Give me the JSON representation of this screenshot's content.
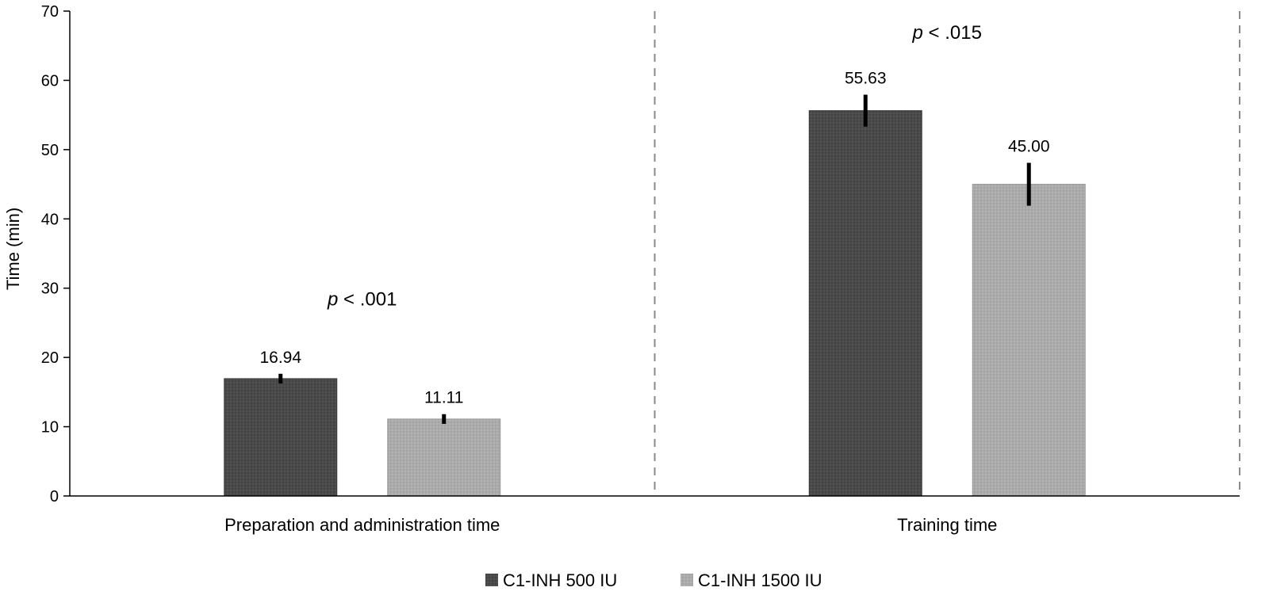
{
  "chart_data": {
    "type": "bar",
    "title": "",
    "xlabel": "",
    "ylabel": "Time (min)",
    "ylim": [
      0,
      70
    ],
    "yticks": [
      0,
      10,
      20,
      30,
      40,
      50,
      60,
      70
    ],
    "grid": false,
    "legend_position": "bottom",
    "categories": [
      "Preparation and administration time",
      "Training time"
    ],
    "series": [
      {
        "name": "C1-INH 500 IU",
        "color": "#4a4a4a",
        "values": [
          16.94,
          55.63
        ],
        "value_labels": [
          "16.94",
          "55.63"
        ],
        "error": [
          0.7,
          2.3
        ]
      },
      {
        "name": "C1-INH 1500 IU",
        "color": "#ababab",
        "values": [
          11.11,
          45.0
        ],
        "value_labels": [
          "11.11",
          "45.00"
        ],
        "error": [
          0.7,
          3.1
        ]
      }
    ],
    "annotations": [
      {
        "category_index": 0,
        "p_symbol": "p",
        "p_rest": " < .001",
        "y": 27.5
      },
      {
        "category_index": 1,
        "p_symbol": "p",
        "p_rest": " < .015",
        "y": 66
      }
    ]
  }
}
